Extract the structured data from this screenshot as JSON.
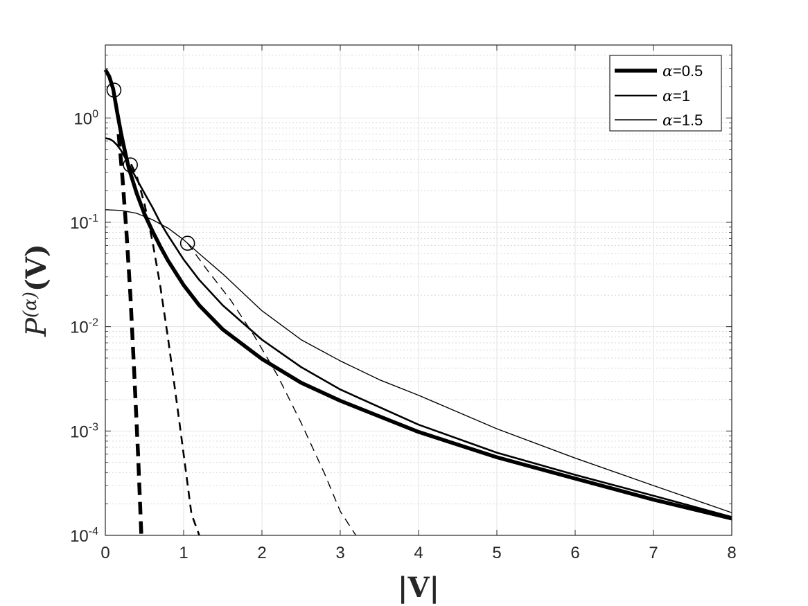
{
  "chart_data": {
    "type": "line",
    "title": "",
    "xlabel": "|V|",
    "ylabel_base": "P",
    "ylabel_superscript": "(α)",
    "ylabel_arg": "(V)",
    "xscale": "linear",
    "yscale": "log",
    "xlim": [
      0,
      8
    ],
    "ylim": [
      0.0001,
      5
    ],
    "grid": true,
    "minor_grid": true,
    "legend_position": "top-right",
    "x_ticks": [
      0,
      1,
      2,
      3,
      4,
      5,
      6,
      7,
      8
    ],
    "x_tick_labels": [
      "0",
      "1",
      "2",
      "3",
      "4",
      "5",
      "6",
      "7",
      "8"
    ],
    "y_ticks": [
      0.0001,
      0.001,
      0.01,
      0.1,
      1
    ],
    "y_tick_labels": [
      {
        "base": "10",
        "exp": "-4"
      },
      {
        "base": "10",
        "exp": "-3"
      },
      {
        "base": "10",
        "exp": "-2"
      },
      {
        "base": "10",
        "exp": "-1"
      },
      {
        "base": "10",
        "exp": "0"
      }
    ],
    "series": [
      {
        "name": "α=0.5",
        "alpha_symbol": "α",
        "alpha_value": "=0.5",
        "style": "solid",
        "weight": "thick",
        "color": "#000000",
        "x": [
          0,
          0.05,
          0.1,
          0.15,
          0.2,
          0.25,
          0.3,
          0.4,
          0.5,
          0.6,
          0.7,
          0.8,
          1.0,
          1.2,
          1.5,
          2.0,
          2.5,
          3.0,
          4.0,
          5.0,
          6.0,
          7.0,
          8.0
        ],
        "y": [
          2.9,
          2.5,
          1.9,
          1.15,
          0.72,
          0.48,
          0.33,
          0.19,
          0.12,
          0.083,
          0.059,
          0.043,
          0.025,
          0.016,
          0.0094,
          0.0049,
          0.0029,
          0.00195,
          0.00098,
          0.00056,
          0.00035,
          0.00022,
          0.000145
        ]
      },
      {
        "name": "α=1",
        "alpha_symbol": "α",
        "alpha_value": "=1",
        "style": "solid",
        "weight": "medium",
        "color": "#000000",
        "x": [
          0,
          0.05,
          0.1,
          0.15,
          0.2,
          0.25,
          0.3,
          0.4,
          0.5,
          0.6,
          0.7,
          0.8,
          1.0,
          1.2,
          1.5,
          2.0,
          2.5,
          3.0,
          4.0,
          5.0,
          6.0,
          7.0,
          8.0
        ],
        "y": [
          0.64,
          0.63,
          0.6,
          0.55,
          0.49,
          0.42,
          0.36,
          0.26,
          0.19,
          0.14,
          0.1,
          0.075,
          0.044,
          0.028,
          0.016,
          0.0075,
          0.0041,
          0.0025,
          0.00115,
          0.00062,
          0.00038,
          0.00024,
          0.00015
        ]
      },
      {
        "name": "α=1.5",
        "alpha_symbol": "α",
        "alpha_value": "=1.5",
        "style": "solid",
        "weight": "thin",
        "color": "#000000",
        "x": [
          0,
          0.2,
          0.4,
          0.6,
          0.8,
          1.0,
          1.2,
          1.5,
          2.0,
          2.5,
          3.0,
          3.5,
          4.0,
          5.0,
          6.0,
          7.0,
          8.0
        ],
        "y": [
          0.132,
          0.13,
          0.122,
          0.106,
          0.088,
          0.068,
          0.05,
          0.032,
          0.0142,
          0.0075,
          0.0047,
          0.0031,
          0.0022,
          0.00105,
          0.00055,
          0.0003,
          0.000165
        ]
      },
      {
        "name": "",
        "style": "dashed",
        "weight": "thick",
        "color": "#000000",
        "x": [
          0.17,
          0.22,
          0.27,
          0.32,
          0.37,
          0.42,
          0.46
        ],
        "y": [
          0.7,
          0.26,
          0.08,
          0.02,
          0.0035,
          0.00055,
          0.0001
        ]
      },
      {
        "name": "",
        "style": "dashed",
        "weight": "medium",
        "color": "#000000",
        "x": [
          0.33,
          0.4,
          0.5,
          0.6,
          0.7,
          0.8,
          0.9,
          1.0,
          1.1,
          1.2
        ],
        "y": [
          0.36,
          0.28,
          0.15,
          0.067,
          0.025,
          0.0078,
          0.0022,
          0.0006,
          0.00016,
          0.0001
        ]
      },
      {
        "name": "",
        "style": "dashed",
        "weight": "thin",
        "color": "#000000",
        "x": [
          1.05,
          1.3,
          1.6,
          1.9,
          2.2,
          2.5,
          2.8,
          3.0,
          3.2
        ],
        "y": [
          0.063,
          0.035,
          0.018,
          0.0082,
          0.0034,
          0.0012,
          0.00039,
          0.00017,
          0.0001
        ]
      }
    ],
    "markers": [
      {
        "x": 0.11,
        "y": 1.85,
        "shape": "circle"
      },
      {
        "x": 0.32,
        "y": 0.355,
        "shape": "circle"
      },
      {
        "x": 1.05,
        "y": 0.063,
        "shape": "circle"
      }
    ]
  }
}
